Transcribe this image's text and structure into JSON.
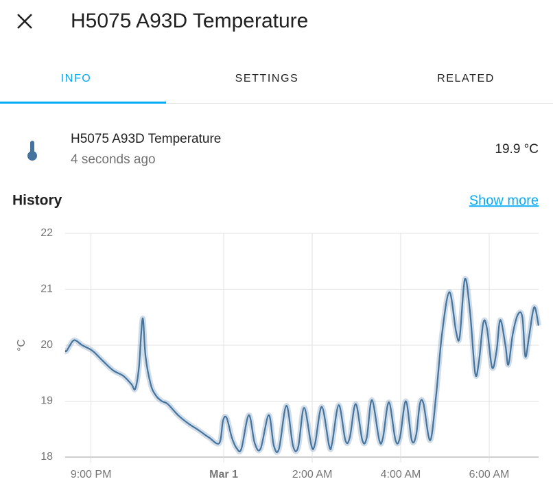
{
  "header": {
    "title": "H5075 A93D Temperature"
  },
  "tabs": [
    "INFO",
    "SETTINGS",
    "RELATED"
  ],
  "entity": {
    "name": "H5075 A93D Temperature",
    "last_changed": "4 seconds ago",
    "state": "19.9 °C"
  },
  "history": {
    "title": "History",
    "link": "Show more"
  },
  "chart_data": {
    "type": "line",
    "ylabel": "°C",
    "x": [
      "20:25",
      "20:27",
      "20:35",
      "20:40",
      "20:48",
      "21:02",
      "21:16",
      "21:30",
      "21:44",
      "21:55",
      "22:00",
      "22:05",
      "22:10",
      "22:14",
      "22:21",
      "22:28",
      "22:36",
      "22:44",
      "22:58",
      "23:12",
      "23:26",
      "23:40",
      "23:54",
      "23:59",
      "00:04",
      "00:11",
      "00:18",
      "00:24",
      "00:34",
      "00:42",
      "00:50",
      "01:01",
      "01:08",
      "01:15",
      "01:25",
      "01:34",
      "01:41",
      "01:49",
      "01:59",
      "02:04",
      "02:13",
      "02:23",
      "02:27",
      "02:36",
      "02:45",
      "02:51",
      "02:59",
      "03:08",
      "03:14",
      "03:21",
      "03:31",
      "03:36",
      "03:44",
      "03:53",
      "03:59",
      "04:07",
      "04:15",
      "04:21",
      "04:26",
      "04:31",
      "04:40",
      "04:48",
      "04:56",
      "05:06",
      "05:15",
      "05:20",
      "05:27",
      "05:34",
      "05:41",
      "05:46",
      "05:52",
      "05:57",
      "06:04",
      "06:10",
      "06:15",
      "06:22",
      "06:26",
      "06:32",
      "06:39",
      "06:45",
      "06:49",
      "06:54",
      "07:01",
      "07:07"
    ],
    "series": [
      {
        "color": "#44739e",
        "values": [
          19.9,
          19.9,
          20.07,
          20.08,
          20.0,
          19.9,
          19.72,
          19.55,
          19.45,
          19.3,
          19.22,
          19.6,
          20.48,
          19.8,
          19.3,
          19.1,
          19.0,
          18.95,
          18.75,
          18.6,
          18.48,
          18.35,
          18.25,
          18.65,
          18.7,
          18.35,
          18.15,
          18.15,
          18.75,
          18.25,
          18.15,
          18.75,
          18.2,
          18.15,
          18.92,
          18.2,
          18.18,
          18.88,
          18.2,
          18.25,
          18.9,
          18.2,
          18.25,
          18.93,
          18.3,
          18.35,
          18.95,
          18.3,
          18.35,
          19.02,
          18.3,
          18.35,
          18.98,
          18.3,
          18.35,
          19.0,
          18.3,
          18.4,
          18.95,
          18.95,
          18.3,
          19.1,
          20.2,
          20.95,
          20.25,
          20.15,
          21.18,
          20.6,
          19.5,
          19.7,
          20.4,
          20.3,
          19.6,
          19.9,
          20.45,
          20.0,
          19.65,
          20.2,
          20.55,
          20.5,
          19.8,
          20.15,
          20.68,
          20.35
        ]
      }
    ],
    "xlim": [
      "20:25",
      "07:07"
    ],
    "xticks": [
      {
        "value": "21:00",
        "label": "9:00 PM"
      },
      {
        "value": "00:00",
        "label": "Mar 1",
        "bold": true
      },
      {
        "value": "02:00",
        "label": "2:00 AM"
      },
      {
        "value": "04:00",
        "label": "4:00 AM"
      },
      {
        "value": "06:00",
        "label": "6:00 AM"
      }
    ],
    "ylim": [
      18,
      22
    ],
    "yticks": [
      18,
      19,
      20,
      21,
      22
    ],
    "grid": true
  }
}
